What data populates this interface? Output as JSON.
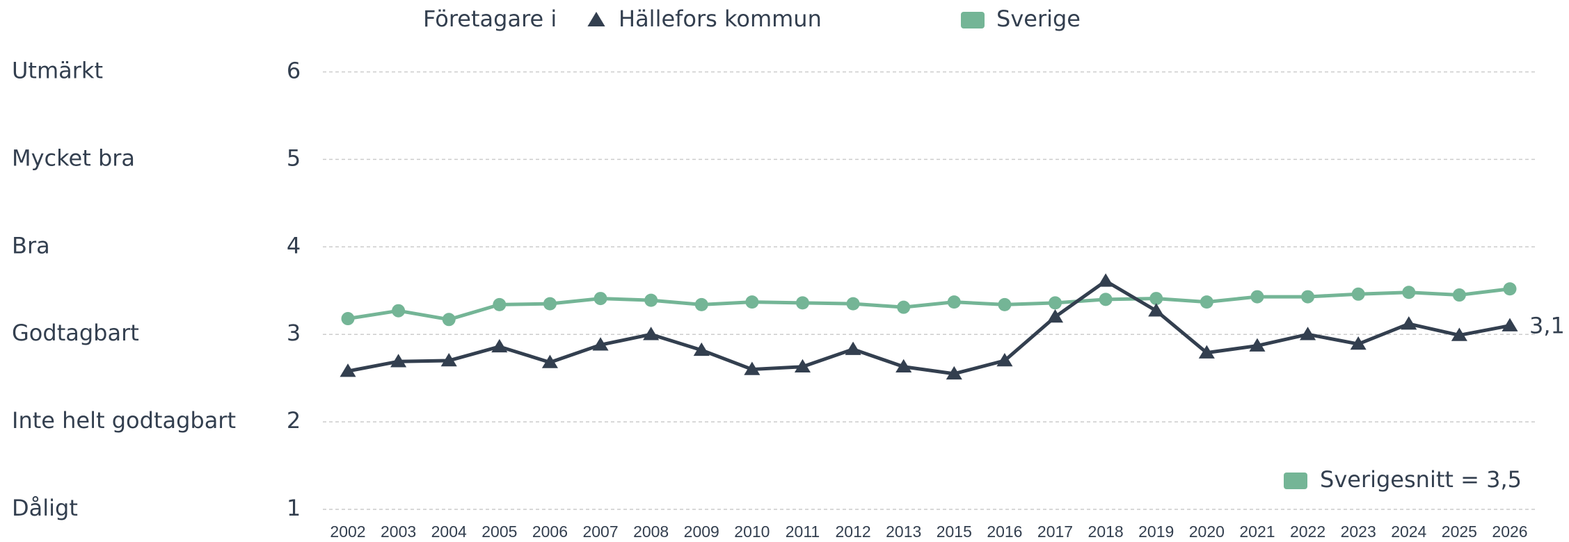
{
  "chart_data": {
    "type": "line",
    "legend_prefix": "Företagare i",
    "categories": [
      "2002",
      "2003",
      "2004",
      "2005",
      "2006",
      "2007",
      "2008",
      "2009",
      "2010",
      "2011",
      "2012",
      "2013",
      "2015",
      "2016",
      "2017",
      "2018",
      "2019",
      "2020",
      "2021",
      "2022",
      "2023",
      "2024",
      "2025",
      "2026"
    ],
    "series": [
      {
        "name": "Hällefors kommun",
        "color": "#333f4f",
        "marker": "triangle",
        "values": [
          2.58,
          2.69,
          2.7,
          2.86,
          2.68,
          2.88,
          3.0,
          2.82,
          2.6,
          2.63,
          2.83,
          2.63,
          2.55,
          2.7,
          3.2,
          3.61,
          3.27,
          2.79,
          2.87,
          3.0,
          2.89,
          3.12,
          2.99,
          3.1
        ],
        "value_labels": [
          null,
          null,
          null,
          null,
          null,
          null,
          null,
          null,
          null,
          null,
          null,
          null,
          null,
          null,
          null,
          null,
          null,
          null,
          null,
          null,
          null,
          null,
          null,
          "3,1"
        ]
      },
      {
        "name": "Sverige",
        "color": "#74b596",
        "marker": "circle",
        "values": [
          3.18,
          3.27,
          3.17,
          3.34,
          3.35,
          3.41,
          3.39,
          3.34,
          3.37,
          3.36,
          3.35,
          3.31,
          3.37,
          3.34,
          3.36,
          3.4,
          3.41,
          3.37,
          3.43,
          3.43,
          3.46,
          3.48,
          3.45,
          3.52
        ]
      }
    ],
    "ylim": [
      1,
      6
    ],
    "yticks": [
      1,
      2,
      3,
      4,
      5,
      6
    ],
    "ytick_names": [
      "Dåligt",
      "Inte helt godtagbart",
      "Godtagbart",
      "Bra",
      "Mycket bra",
      "Utmärkt"
    ],
    "grid": true,
    "annotation": {
      "text": "Sverigesnitt = 3,5",
      "color": "#74b596"
    }
  }
}
